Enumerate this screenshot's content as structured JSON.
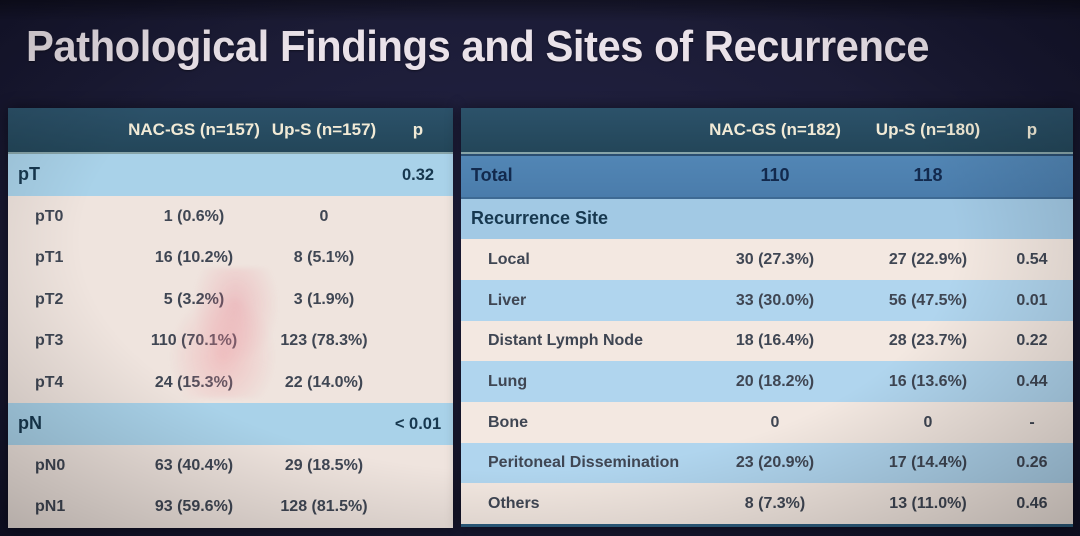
{
  "title": "Pathological Findings and Sites of Recurrence",
  "colors": {
    "slide_background": "#1b1b35",
    "title_text": "#eae2e9",
    "table_header_bg": "#274b60",
    "table_header_text": "#f1ead6",
    "section_row_bg": "#a9d2e9",
    "total_row_bg": "#4d80b0",
    "cream_row_bg": "#f0e6df",
    "blue_row_bg": "#b0d5ee",
    "body_text": "#3f4653"
  },
  "left_table": {
    "header": {
      "col1": "",
      "col2": "NAC-GS (n=157)",
      "col3": "Up-S (n=157)",
      "col4": "p"
    },
    "rows": [
      {
        "type": "section",
        "label": "pT",
        "nacgs": "",
        "ups": "",
        "p": "0.32"
      },
      {
        "type": "data",
        "label": "pT0",
        "nacgs": "1 (0.6%)",
        "ups": "0",
        "p": ""
      },
      {
        "type": "data",
        "label": "pT1",
        "nacgs": "16 (10.2%)",
        "ups": "8 (5.1%)",
        "p": ""
      },
      {
        "type": "data",
        "label": "pT2",
        "nacgs": "5 (3.2%)",
        "ups": "3 (1.9%)",
        "p": ""
      },
      {
        "type": "data",
        "label": "pT3",
        "nacgs": "110 (70.1%)",
        "ups": "123 (78.3%)",
        "p": ""
      },
      {
        "type": "data",
        "label": "pT4",
        "nacgs": "24 (15.3%)",
        "ups": "22 (14.0%)",
        "p": ""
      },
      {
        "type": "section",
        "label": "pN",
        "nacgs": "",
        "ups": "",
        "p": "< 0.01"
      },
      {
        "type": "data",
        "label": "pN0",
        "nacgs": "63 (40.4%)",
        "ups": "29 (18.5%)",
        "p": ""
      },
      {
        "type": "data",
        "label": "pN1",
        "nacgs": "93 (59.6%)",
        "ups": "128 (81.5%)",
        "p": ""
      }
    ]
  },
  "right_table": {
    "header": {
      "col1": "",
      "col2": "NAC-GS (n=182)",
      "col3": "Up-S (n=180)",
      "col4": "p"
    },
    "rows": [
      {
        "type": "total",
        "label": "Total",
        "nacgs": "110",
        "ups": "118",
        "p": ""
      },
      {
        "type": "section",
        "label": "Recurrence Site",
        "nacgs": "",
        "ups": "",
        "p": ""
      },
      {
        "type": "data-light",
        "label": "Local",
        "nacgs": "30 (27.3%)",
        "ups": "27 (22.9%)",
        "p": "0.54"
      },
      {
        "type": "data-blue",
        "label": "Liver",
        "nacgs": "33 (30.0%)",
        "ups": "56 (47.5%)",
        "p": "0.01"
      },
      {
        "type": "data-light",
        "label": "Distant Lymph Node",
        "nacgs": "18 (16.4%)",
        "ups": "28 (23.7%)",
        "p": "0.22"
      },
      {
        "type": "data-blue",
        "label": "Lung",
        "nacgs": "20 (18.2%)",
        "ups": "16 (13.6%)",
        "p": "0.44"
      },
      {
        "type": "data-light",
        "label": "Bone",
        "nacgs": "0",
        "ups": "0",
        "p": "-"
      },
      {
        "type": "data-blue",
        "label": "Peritoneal Dissemination",
        "nacgs": "23 (20.9%)",
        "ups": "17 (14.4%)",
        "p": "0.26"
      },
      {
        "type": "data-light",
        "label": "Others",
        "nacgs": "8 (7.3%)",
        "ups": "13 (11.0%)",
        "p": "0.46"
      }
    ]
  }
}
